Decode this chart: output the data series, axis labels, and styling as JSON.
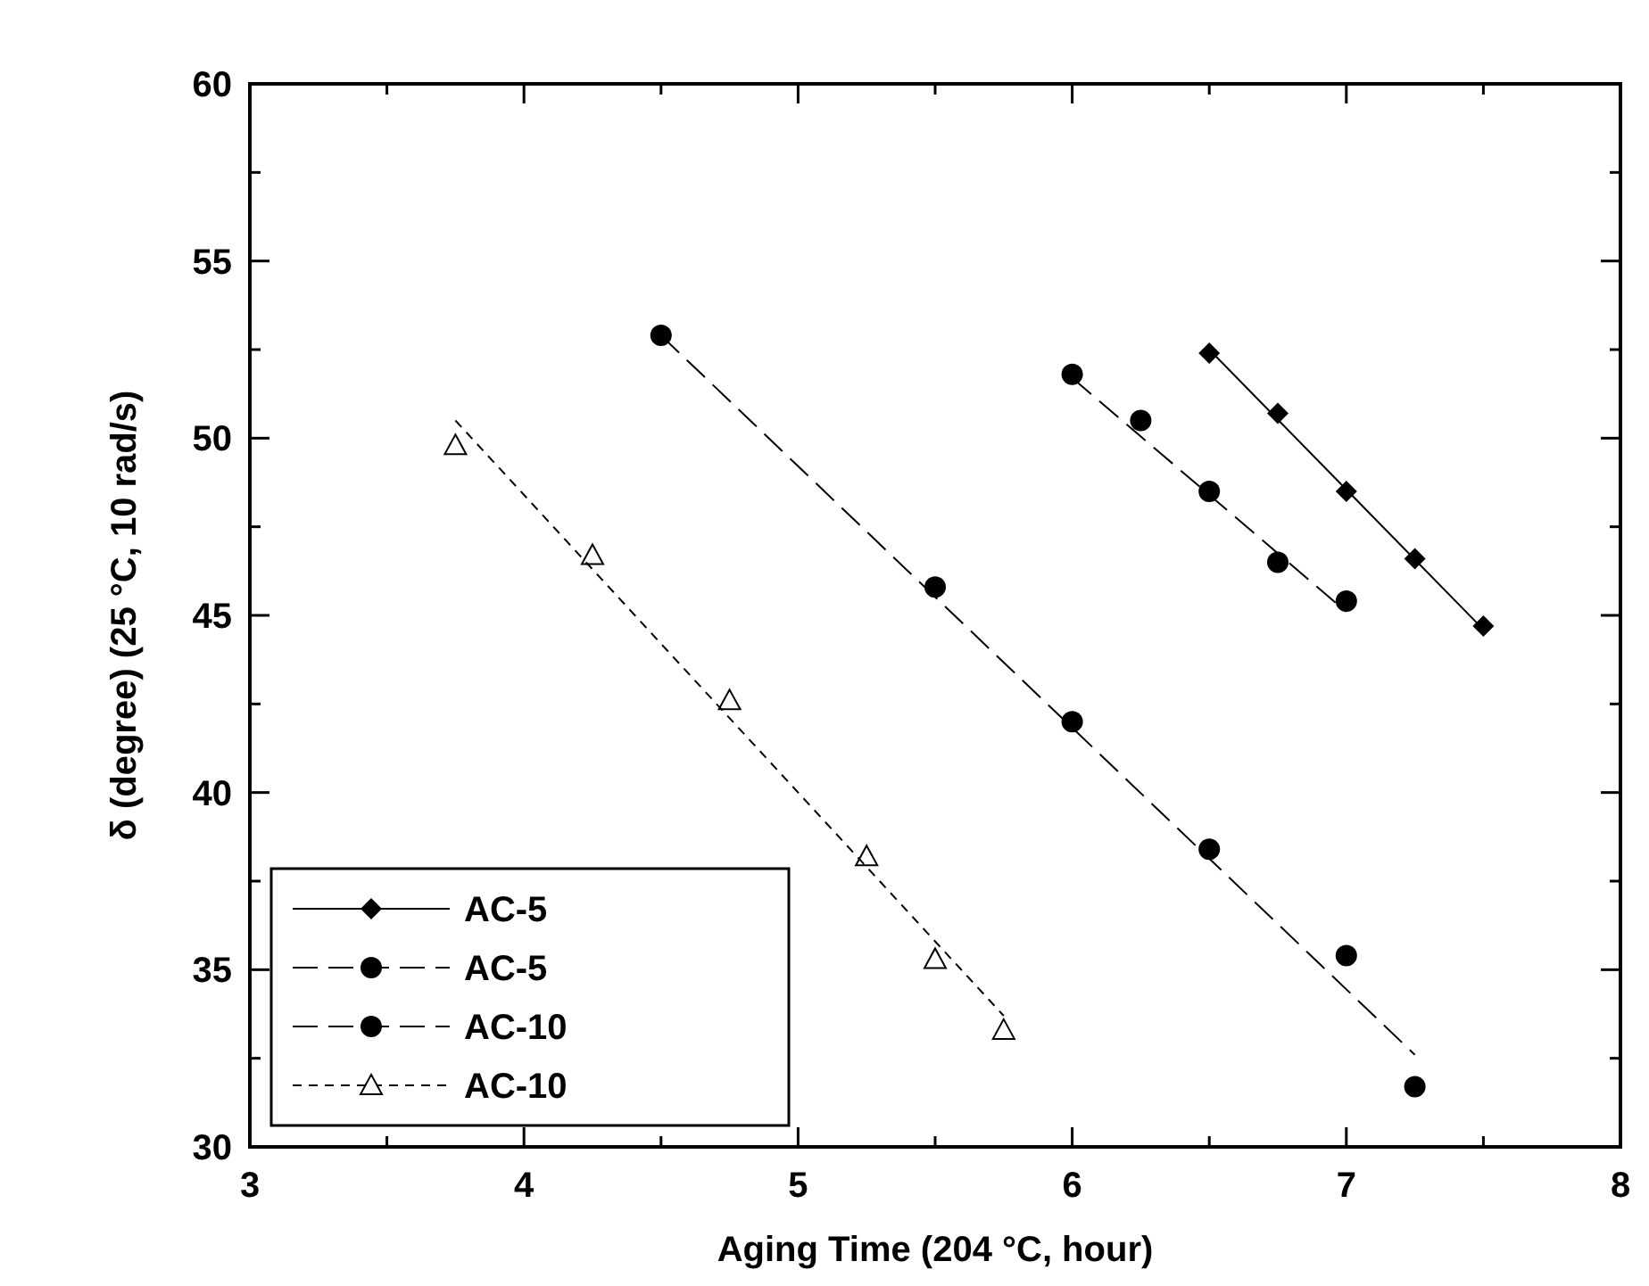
{
  "chart_data": {
    "type": "scatter",
    "xlabel": "Aging Time (204 °C, hour)",
    "ylabel": "δ (degree) (25 °C, 10 rad/s)",
    "xlim": [
      3,
      8
    ],
    "ylim": [
      30,
      60
    ],
    "xticks": [
      3,
      {
        "value": 3.5,
        "label": null
      },
      4,
      {
        "value": 4.5,
        "label": null
      },
      5,
      {
        "value": 5.5,
        "label": null
      },
      6,
      {
        "value": 6.5,
        "label": null
      },
      7,
      {
        "value": 7.5,
        "label": null
      },
      8
    ],
    "yticks": [
      30,
      {
        "value": 32.5,
        "label": null
      },
      35,
      {
        "value": 37.5,
        "label": null
      },
      40,
      {
        "value": 42.5,
        "label": null
      },
      45,
      {
        "value": 47.5,
        "label": null
      },
      50,
      {
        "value": 52.5,
        "label": null
      },
      55,
      {
        "value": 57.5,
        "label": null
      },
      60
    ],
    "grid": false,
    "legend": "bottom left",
    "series": [
      {
        "name": "AC-5",
        "marker": "diamond",
        "line_style": "solid",
        "color": "#000000",
        "x": [
          6.5,
          6.75,
          7,
          7.25,
          7.5
        ],
        "values": [
          52.4,
          50.7,
          48.5,
          46.6,
          44.7
        ]
      },
      {
        "name": "AC-5",
        "marker": "circle",
        "line_style": "dashed",
        "color": "#000000",
        "x": [
          6,
          6.25,
          6.5,
          6.75,
          7
        ],
        "values": [
          51.8,
          50.5,
          48.5,
          46.5,
          45.4
        ]
      },
      {
        "name": "AC-10",
        "marker": "circle",
        "line_style": "dashed",
        "color": "#000000",
        "x": [
          4.5,
          5.5,
          6,
          6.5,
          7,
          7.25
        ],
        "values": [
          52.9,
          45.8,
          42,
          38.4,
          35.4,
          31.7
        ]
      },
      {
        "name": "AC-10",
        "marker": "triangle",
        "line_style": "dotted",
        "color": "#000000",
        "x": [
          3.75,
          4.25,
          4.75,
          5.25,
          5.5,
          5.75
        ],
        "values": [
          49.8,
          46.7,
          42.6,
          38.2,
          35.3,
          33.3
        ]
      },
      {
        "type": "line",
        "line_style": "solid",
        "marker": "none",
        "color": "#000000",
        "x": [
          6.5,
          7.5
        ],
        "values": [
          52.5,
          44.6
        ]
      },
      {
        "type": "line",
        "line_style": "dashed",
        "marker": "none",
        "color": "#000000",
        "x": [
          6,
          7
        ],
        "values": [
          51.7,
          45.1
        ]
      },
      {
        "type": "line",
        "line_style": "dashed",
        "marker": "none",
        "color": "#000000",
        "x": [
          4.5,
          7.25
        ],
        "values": [
          52.9,
          32.6
        ]
      },
      {
        "type": "line",
        "line_style": "dotted",
        "marker": "none",
        "color": "#000000",
        "x": [
          3.75,
          5.75
        ],
        "values": [
          50.5,
          33.7
        ]
      }
    ]
  }
}
